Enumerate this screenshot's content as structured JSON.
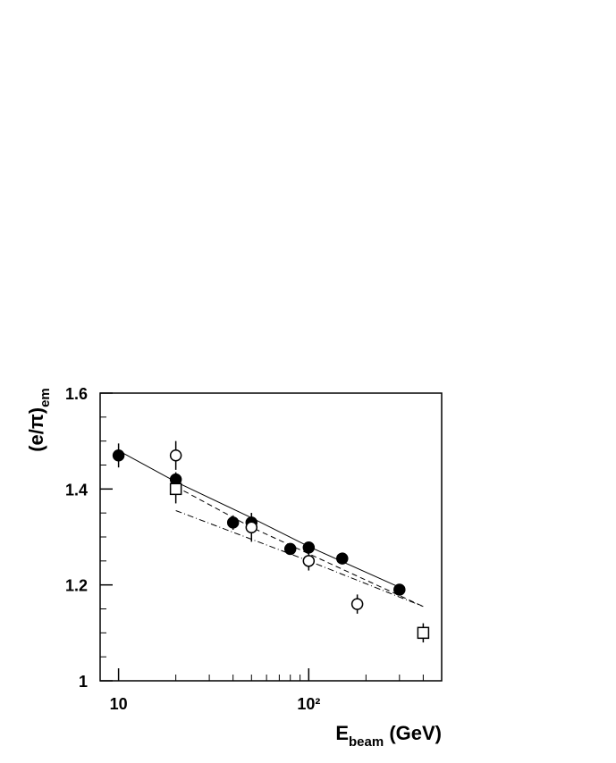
{
  "chart_data": {
    "type": "scatter",
    "ylabel": "(e/π)",
    "ylabel_sub": "em",
    "xlabel": "E",
    "xlabel_sub": "beam",
    "xlabel_unit": " (GeV)",
    "log_x": true,
    "xlim": [
      8,
      500
    ],
    "ylim": [
      1,
      1.6
    ],
    "xticks": [
      10,
      {
        "value": 100,
        "label": "10²"
      }
    ],
    "xminorticks": [
      20,
      30,
      40,
      50,
      60,
      70,
      80,
      90,
      200,
      300,
      400
    ],
    "yticks": [
      1,
      1.2,
      1.4,
      1.6
    ],
    "yminorticks": [
      1.05,
      1.1,
      1.15,
      1.25,
      1.3,
      1.35,
      1.45,
      1.5,
      1.55
    ],
    "series": [
      {
        "marker": "filled-circle",
        "color": "#000000",
        "x": [
          10,
          20,
          40,
          50,
          80,
          100,
          150,
          300
        ],
        "values": [
          1.47,
          1.42,
          1.33,
          1.33,
          1.275,
          1.278,
          1.255,
          1.19
        ],
        "errors": [
          0.025,
          0.015,
          0.015,
          0.02,
          0.01,
          0.01,
          0.01,
          0.01
        ]
      },
      {
        "marker": "open-circle",
        "color": "#000000",
        "x": [
          20,
          50,
          100,
          180
        ],
        "values": [
          1.47,
          1.32,
          1.25,
          1.16
        ],
        "errors": [
          0.03,
          0.03,
          0.02,
          0.02
        ]
      },
      {
        "marker": "open-square",
        "color": "#000000",
        "x": [
          20,
          400
        ],
        "values": [
          1.4,
          1.1
        ],
        "errors": [
          0.03,
          0.02
        ]
      }
    ],
    "curves": [
      {
        "style": "solid",
        "x": [
          10,
          20,
          50,
          100,
          300
        ],
        "values": [
          1.48,
          1.415,
          1.34,
          1.28,
          1.195
        ]
      },
      {
        "style": "dashed",
        "x": [
          20,
          50,
          100,
          400
        ],
        "values": [
          1.405,
          1.32,
          1.265,
          1.155
        ]
      },
      {
        "style": "dash-dot",
        "x": [
          20,
          100,
          400
        ],
        "values": [
          1.355,
          1.25,
          1.155
        ]
      }
    ]
  }
}
